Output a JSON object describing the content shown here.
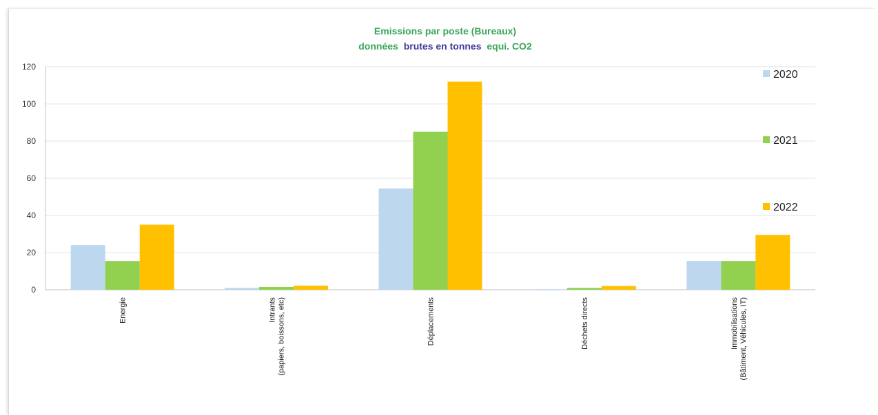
{
  "chart_data": {
    "type": "bar",
    "title_line1": "Emissions par poste (Bureaux)",
    "title_line2": {
      "part1": "données",
      "part2": "brutes en tonnes",
      "part3": "equi. CO2"
    },
    "title_colors": {
      "green": "#3aa55a",
      "blue": "#3c3c9a"
    },
    "categories": [
      [
        "Energie"
      ],
      [
        "Intrants",
        "(papiers, boissons, etc)"
      ],
      [
        "Déplacements"
      ],
      [
        "Déchets directs"
      ],
      [
        "Immobilisations",
        "(Bâtiment, Véhicules, IT)"
      ]
    ],
    "series": [
      {
        "name": "2020",
        "color": "#bdd7ee",
        "values": [
          24,
          1,
          54.5,
          0.3,
          15.5
        ]
      },
      {
        "name": "2021",
        "color": "#92d050",
        "values": [
          15.5,
          1.5,
          85,
          1,
          15.5
        ]
      },
      {
        "name": "2022",
        "color": "#ffc000",
        "values": [
          35,
          2.2,
          112,
          2,
          29.5
        ]
      }
    ],
    "ylim": [
      0,
      120
    ],
    "yticks": [
      0,
      20,
      40,
      60,
      80,
      100,
      120
    ],
    "grid": true,
    "legend_position": "right"
  }
}
